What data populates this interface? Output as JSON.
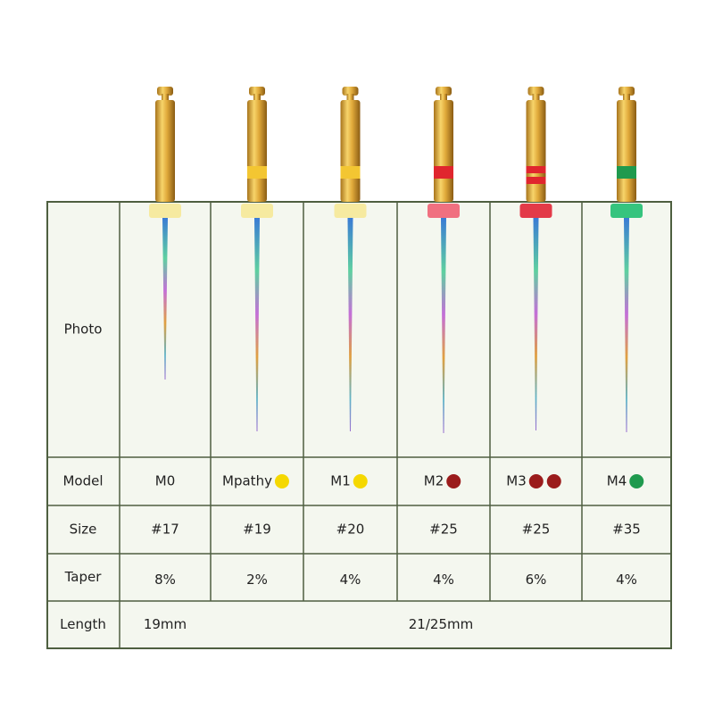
{
  "table": {
    "row_headers": [
      "Photo",
      "Model",
      "Size",
      "Taper",
      "Length"
    ],
    "models": [
      {
        "label": "M0",
        "dots": []
      },
      {
        "label": "Mpathy",
        "dots": [
          "#f5d800"
        ]
      },
      {
        "label": "M1",
        "dots": [
          "#f5d800"
        ]
      },
      {
        "label": "M2",
        "dots": [
          "#9b1c1c"
        ]
      },
      {
        "label": "M3",
        "dots": [
          "#9b1c1c",
          "#9b1c1c"
        ]
      },
      {
        "label": "M4",
        "dots": [
          "#1f9a4e"
        ]
      }
    ],
    "sizes": [
      "#17",
      "#19",
      "#20",
      "#25",
      "#25",
      "#35"
    ],
    "tapers": [
      "8%",
      "2%",
      "4%",
      "4%",
      "6%",
      "4%"
    ],
    "lengths": [
      "19mm",
      "21/25mm"
    ]
  }
}
